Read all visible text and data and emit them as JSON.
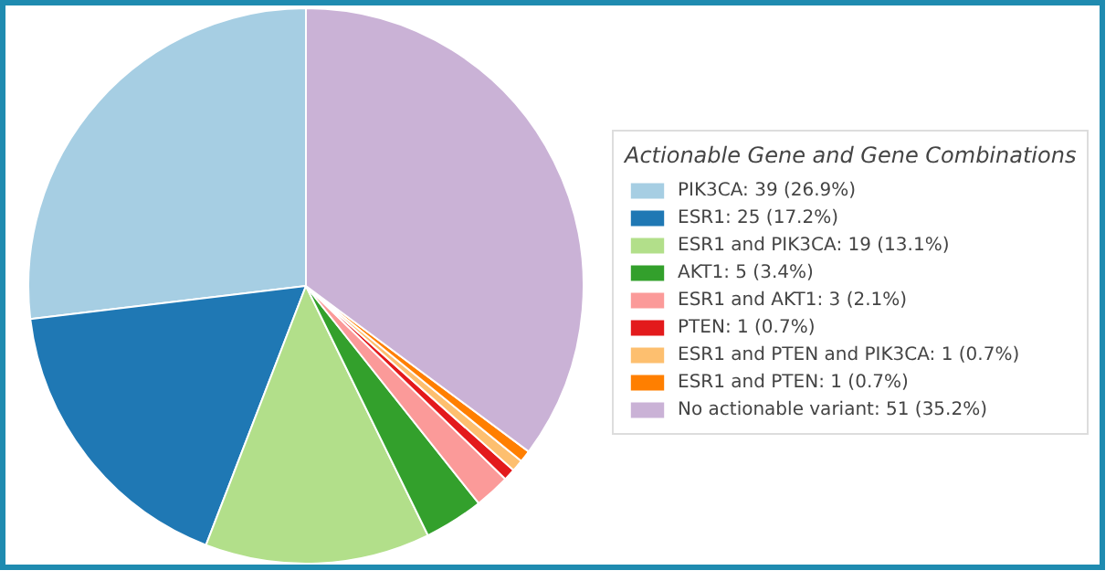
{
  "chart_data": {
    "type": "pie",
    "legend_title": "Actionable Gene and Gene Combinations",
    "categories": [
      "PIK3CA: 39 (26.9%)",
      "ESR1: 25 (17.2%)",
      "ESR1 and PIK3CA: 19 (13.1%)",
      "AKT1: 5 (3.4%)",
      "ESR1 and AKT1: 3 (2.1%)",
      "PTEN: 1 (0.7%)",
      "ESR1 and PTEN and PIK3CA: 1 (0.7%)",
      "ESR1 and PTEN: 1 (0.7%)",
      "No actionable variant: 51 (35.2%)"
    ],
    "values": [
      39,
      25,
      19,
      5,
      3,
      1,
      1,
      1,
      51
    ],
    "colors": [
      "#a6cee3",
      "#1f78b4",
      "#b2df8a",
      "#33a02c",
      "#fb9a99",
      "#e31a1c",
      "#fdbf6f",
      "#ff7f00",
      "#cab2d6"
    ],
    "legend": "right"
  }
}
